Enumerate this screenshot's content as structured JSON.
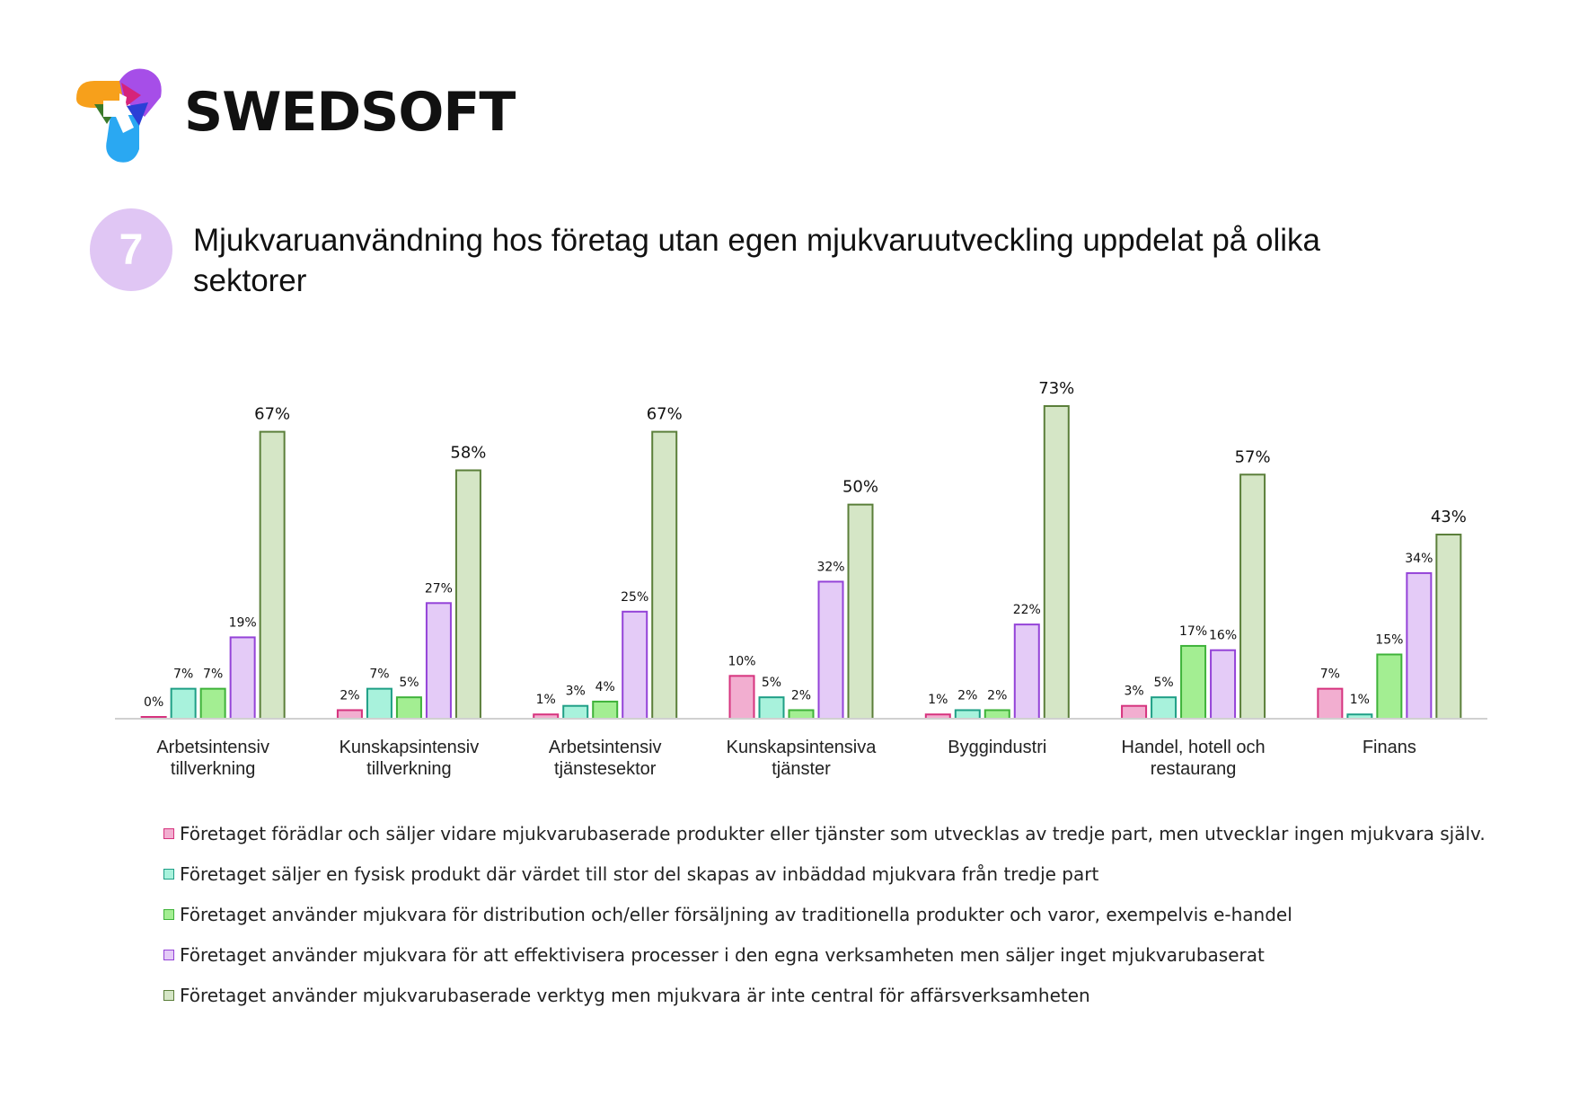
{
  "brand": {
    "name": "SWEDSOFT",
    "logo_colors": [
      "#f7a01b",
      "#a64ee8",
      "#2aa8f2",
      "#d6237a",
      "#3b7a2a",
      "#2b3fd6"
    ]
  },
  "figure": {
    "number": "7",
    "title": "Mjukvaruanvändning hos företag utan egen mjukvaruutveckling uppdelat på olika sektorer"
  },
  "chart_data": {
    "type": "bar",
    "categories": [
      [
        "Arbetsintensiv",
        "tillverkning"
      ],
      [
        "Kunskapsintensiv",
        "tillverkning"
      ],
      [
        "Arbetsintensiv",
        "tjänstesektor"
      ],
      [
        "Kunskapsintensiva",
        "tjänster"
      ],
      [
        "Byggindustri"
      ],
      [
        "Handel, hotell och",
        "restaurang"
      ],
      [
        "Finans"
      ]
    ],
    "ylim": [
      0,
      80
    ],
    "grid": false,
    "legend_placement": "bottom",
    "series": [
      {
        "name": "Företaget förädlar och säljer vidare mjukvarubaserade produkter eller tjänster som utvecklas av tredje part, men utvecklar ingen mjukvara själv.",
        "fill": "#f2aed0",
        "stroke": "#d6337e",
        "values": [
          0,
          2,
          1,
          10,
          1,
          3,
          7
        ],
        "labels": [
          "0%",
          "2%",
          "1%",
          "10%",
          "1%",
          "3%",
          "7%"
        ]
      },
      {
        "name": "Företaget säljer en fysisk produkt där värdet till stor del skapas av inbäddad mjukvara från tredje part",
        "fill": "#a8f2dc",
        "stroke": "#1f9f86",
        "values": [
          7,
          7,
          3,
          5,
          2,
          5,
          1
        ],
        "labels": [
          "7%",
          "7%",
          "3%",
          "5%",
          "2%",
          "5%",
          "1%"
        ]
      },
      {
        "name": "Företaget använder mjukvara för distribution och/eller försäljning av traditionella produkter och varor, exempelvis e-handel",
        "fill": "#a3ee92",
        "stroke": "#3fb33a",
        "values": [
          7,
          5,
          4,
          2,
          2,
          17,
          15
        ],
        "labels": [
          "7%",
          "5%",
          "4%",
          "2%",
          "2%",
          "17%",
          "15%"
        ]
      },
      {
        "name": "Företaget använder mjukvara för att effektivisera processer i den egna verksamheten men säljer inget mjukvarubaserat",
        "fill": "#e4cbf7",
        "stroke": "#9443d8",
        "values": [
          19,
          27,
          25,
          32,
          22,
          16,
          34
        ],
        "labels": [
          "19%",
          "27%",
          "25%",
          "32%",
          "22%",
          "16%",
          "34%"
        ]
      },
      {
        "name": "Företaget använder mjukvarubaserade verktyg men mjukvara är inte central för affärsverksamheten",
        "fill": "#d5e6c6",
        "stroke": "#5b7f3a",
        "values": [
          67,
          58,
          67,
          50,
          73,
          57,
          43
        ],
        "labels": [
          "67%",
          "58%",
          "67%",
          "50%",
          "73%",
          "57%",
          "43%"
        ]
      }
    ]
  }
}
